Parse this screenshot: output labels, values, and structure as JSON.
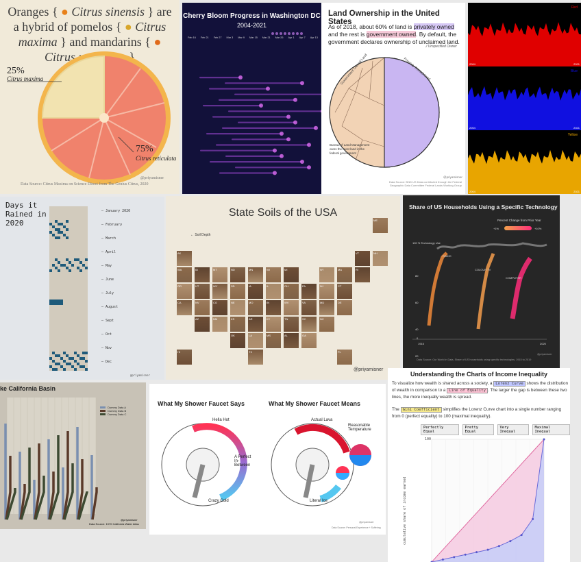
{
  "orange": {
    "title_a": "Oranges {",
    "title_b": "Citrus sinensis",
    "title_c": "} are a hybrid of pomelos {",
    "title_d": "Citrus maxima",
    "title_e": "} and mandarins {",
    "title_f": "Citrus reticulata",
    "title_g": "}",
    "pct_left": "25%",
    "name_left": "Citrus maxima",
    "pct_right": "75%",
    "name_right": "Citrus reticulata",
    "handle": "@priyamisner",
    "source": "Data Source: Citrus Maxima on Science Direct from The Genius Citrus, 2020"
  },
  "cherry": {
    "title": "Cherry Bloom Progress in Washington DC",
    "subtitle": "2004-2021",
    "dates": [
      "Feb 16",
      "Feb 21",
      "Feb 27",
      "Mar 3",
      "Mar 9",
      "Mar 15",
      "Mar 21",
      "Mar 26",
      "Apr 1",
      "Apr 7",
      "Apr 13"
    ]
  },
  "land": {
    "title": "Land Ownership in the United States",
    "p1": "As of 2018, about 60% of land is",
    "p1_hl": "privately owned",
    "p2": "and the rest is",
    "p2_hl": "government owned",
    "p3": ". By default, the government declares ownership of unclaimed land.",
    "legend": "Unspecified Owner",
    "arc_left": "Government Owned Land",
    "arc_right": "Privately Owned Land",
    "blm_note": "Bureau of Land Management owns the most land in the federal government",
    "handle": "@priyamisner",
    "source": "Data Source: BND US Data contributed through the Federal Geographic Data Committee Federal Lands Working Group",
    "colors": {
      "private": "#c9b6f2",
      "gov": "#f2d3b5"
    }
  },
  "rgb": {
    "labels": [
      "Red",
      "Blue",
      "Yellow"
    ],
    "years_start": "2004",
    "years_end": "2021",
    "colors": [
      "#e00000",
      "#1010e0",
      "#e8a500"
    ]
  },
  "rain": {
    "title": "Days it Rained in 2020",
    "months": [
      "January 2020",
      "February",
      "March",
      "April",
      "May",
      "June",
      "July",
      "August",
      "Sept",
      "Oct",
      "Nov",
      "Dec"
    ],
    "handle": "@priyamisner"
  },
  "soils": {
    "title": "State Soils of the USA",
    "legend": "Soil Depth",
    "handle": "@priyamisner",
    "states": [
      "AK",
      "ME",
      "VT",
      "NH",
      "WA",
      "ID",
      "MT",
      "ND",
      "MN",
      "WI",
      "MI",
      "NY",
      "MA",
      "RI",
      "OR",
      "UT",
      "WY",
      "SD",
      "IA",
      "IL",
      "OH",
      "PA",
      "NJ",
      "CT",
      "CA",
      "NV",
      "CO",
      "NE",
      "MO",
      "IN",
      "WV",
      "VA",
      "MD",
      "DE",
      "AZ",
      "NM",
      "KS",
      "AR",
      "KY",
      "TN",
      "SC",
      "NC",
      "OK",
      "LA",
      "MS",
      "AL",
      "GA",
      "HI",
      "TX",
      "FL"
    ]
  },
  "tech": {
    "title": "Share of US Households Using a Specific Technology",
    "legend_title": "Percent Change from Prior Year",
    "legend_low": "+1%",
    "legend_high": "+10%",
    "top_label": "100 % Technology Use",
    "series": [
      "RADIO",
      "COLOUR TV",
      "COMPUTER"
    ],
    "yticks": [
      "80",
      "60",
      "40",
      "20",
      "0"
    ],
    "x_start": "1915",
    "x_end": "2020",
    "handle": "@priyamisner",
    "source": "Data Source: Our World in Data, Share of US households using specific technologies, 1915 to 2019"
  },
  "cal": {
    "title": "ke California Basin",
    "legend": [
      "Dummy Data A",
      "Dummy Data B",
      "Dummy Data C"
    ],
    "legend_colors": [
      "#7a8fb0",
      "#5a3a2a",
      "#3d4a32"
    ],
    "handle": "@priyamisner",
    "source": "Data Source: 1970 California Water Atlas"
  },
  "faucet": {
    "h_left": "What My Shower Faucet Says",
    "h_right": "What My Shower Faucet Means",
    "l_hot": "Hella Hot",
    "l_mid": "A Perfect In-Between",
    "l_cold": "Crazy Cold",
    "r_hot": "Actual Lava",
    "r_temp": "Reasonable Temperature",
    "r_cold": "Literal Ice",
    "handle": "@priyamisner",
    "source": "Data Source: Personal Experience + Suffering"
  },
  "ineq": {
    "title": "Understanding the Charts of Income Inequality",
    "p1a": "To visualize how wealth is shared across a society, a",
    "p1_chip": "Lorenz Curve",
    "p1b": "shows the distribution of wealth in comparison to a",
    "p1_chip2": "Line of Equality",
    "p1c": ". The larger the gap is between these two lines, the more inequally wealth is spread.",
    "p2a": "The",
    "p2_chip": "Gini Coefficient",
    "p2b": "simplifies the Lorenz Curve chart into a single number ranging from 0 (perfect equality) to 100 (maximal inequality).",
    "buttons": [
      "Perfectly Equal",
      "Pretty Equal",
      "Very Inequal",
      "Maximal Inequal"
    ],
    "y_top": "100",
    "ylabel": "cumulative share of income earned"
  }
}
